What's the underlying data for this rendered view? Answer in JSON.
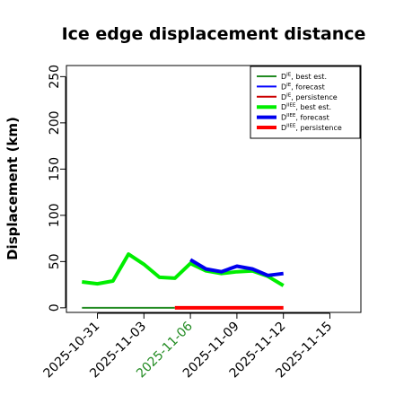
{
  "chart_data": {
    "type": "line",
    "title": "Ice edge displacement distance",
    "xlabel": "",
    "ylabel": "Displacement (km)",
    "xlim": [
      "2025-10-29",
      "2025-11-17"
    ],
    "ylim": [
      -5,
      262
    ],
    "yticks": [
      0,
      50,
      100,
      150,
      200,
      250
    ],
    "xticks": [
      {
        "date": "2025-10-31",
        "label": "2025-10-31",
        "color": "#000000"
      },
      {
        "date": "2025-11-03",
        "label": "2025-11-03",
        "color": "#000000"
      },
      {
        "date": "2025-11-06",
        "label": "2025-11-06",
        "color": "#228b22"
      },
      {
        "date": "2025-11-09",
        "label": "2025-11-09",
        "color": "#000000"
      },
      {
        "date": "2025-11-12",
        "label": "2025-11-12",
        "color": "#000000"
      },
      {
        "date": "2025-11-15",
        "label": "2025-11-15",
        "color": "#000000"
      }
    ],
    "grid": false,
    "legend_position": "top-right",
    "series": [
      {
        "name": "D^IE, best est.",
        "color": "#228b22",
        "width": 2,
        "points": [
          [
            "2025-10-30",
            0
          ],
          [
            "2025-11-05",
            0
          ]
        ]
      },
      {
        "name": "D^IE, forecast",
        "color": "#0000ff",
        "width": 2,
        "points": []
      },
      {
        "name": "D^IE, persistence",
        "color": "#cc0000",
        "width": 2,
        "points": []
      },
      {
        "name": "D^IIEE, best est.",
        "color": "#00ee00",
        "width": 4,
        "points": [
          [
            "2025-10-30",
            28
          ],
          [
            "2025-10-31",
            26
          ],
          [
            "2025-11-01",
            29
          ],
          [
            "2025-11-02",
            58
          ],
          [
            "2025-11-03",
            47
          ],
          [
            "2025-11-04",
            33
          ],
          [
            "2025-11-05",
            32
          ],
          [
            "2025-11-06",
            48
          ],
          [
            "2025-11-07",
            40
          ],
          [
            "2025-11-08",
            37
          ],
          [
            "2025-11-09",
            39
          ],
          [
            "2025-11-10",
            40
          ],
          [
            "2025-11-11",
            34
          ],
          [
            "2025-11-12",
            24
          ]
        ]
      },
      {
        "name": "D^IIEE, forecast",
        "color": "#0000ee",
        "width": 4,
        "points": [
          [
            "2025-11-06",
            52
          ],
          [
            "2025-11-07",
            42
          ],
          [
            "2025-11-08",
            39
          ],
          [
            "2025-11-09",
            45
          ],
          [
            "2025-11-10",
            42
          ],
          [
            "2025-11-11",
            35
          ],
          [
            "2025-11-12",
            37
          ]
        ]
      },
      {
        "name": "D^IIEE, persistence",
        "color": "#ff0000",
        "width": 4,
        "points": [
          [
            "2025-11-05",
            0
          ],
          [
            "2025-11-12",
            0
          ]
        ]
      }
    ]
  },
  "legend": [
    {
      "base": "D",
      "sup": "IE",
      "text": ", best est.",
      "color": "#228b22",
      "width": 2
    },
    {
      "base": "D",
      "sup": "IE",
      "text": ", forecast",
      "color": "#0000ff",
      "width": 2
    },
    {
      "base": "D",
      "sup": "IE",
      "text": ", persistence",
      "color": "#cc0000",
      "width": 2
    },
    {
      "base": "D",
      "sup": "IIEE",
      "text": ", best est.",
      "color": "#00ee00",
      "width": 4
    },
    {
      "base": "D",
      "sup": "IIEE",
      "text": ", forecast",
      "color": "#0000ee",
      "width": 4
    },
    {
      "base": "D",
      "sup": "IIEE",
      "text": ", persistence",
      "color": "#ff0000",
      "width": 4
    }
  ]
}
